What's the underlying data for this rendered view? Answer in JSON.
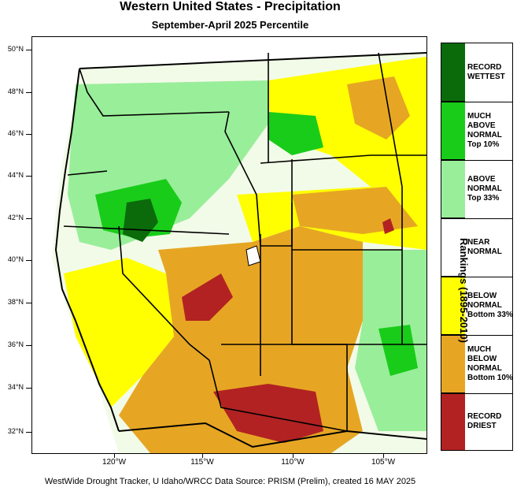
{
  "title": "Western United States - Precipitation",
  "subtitle": "September-April 2025 Percentile",
  "latitude_labels": [
    "50°N",
    "48°N",
    "46°N",
    "44°N",
    "42°N",
    "40°N",
    "38°N",
    "36°N",
    "34°N",
    "32°N"
  ],
  "longitude_labels": [
    "120°W",
    "115°W",
    "110°W",
    "105°W"
  ],
  "legend": {
    "axis_title": "Rankings (1895-2010)",
    "categories": [
      {
        "lines": [
          "RECORD",
          "WETTEST"
        ],
        "color": "#0b6b0b"
      },
      {
        "lines": [
          "MUCH",
          "ABOVE",
          "NORMAL",
          "Top 10%"
        ],
        "color": "#19cc19"
      },
      {
        "lines": [
          "ABOVE",
          "NORMAL",
          "Top 33%"
        ],
        "color": "#99ee99"
      },
      {
        "lines": [
          "NEAR",
          "NORMAL"
        ],
        "color": "#ffffff"
      },
      {
        "lines": [
          "BELOW",
          "NORMAL",
          "Bottom 33%"
        ],
        "color": "#ffff00"
      },
      {
        "lines": [
          "MUCH",
          "BELOW",
          "NORMAL",
          "Bottom 10%"
        ],
        "color": "#e6a623"
      },
      {
        "lines": [
          "RECORD",
          "DRIEST"
        ],
        "color": "#b22222"
      }
    ]
  },
  "footer": "WestWide Drought Tracker, U Idaho/WRCC Data Source: PRISM (Prelim), created 16 MAY 2025",
  "colors": {
    "record_wettest": "#0b6b0b",
    "much_above": "#19cc19",
    "above": "#99ee99",
    "near": "#ffffff",
    "below": "#ffff00",
    "much_below": "#e6a623",
    "record_driest": "#b22222"
  }
}
